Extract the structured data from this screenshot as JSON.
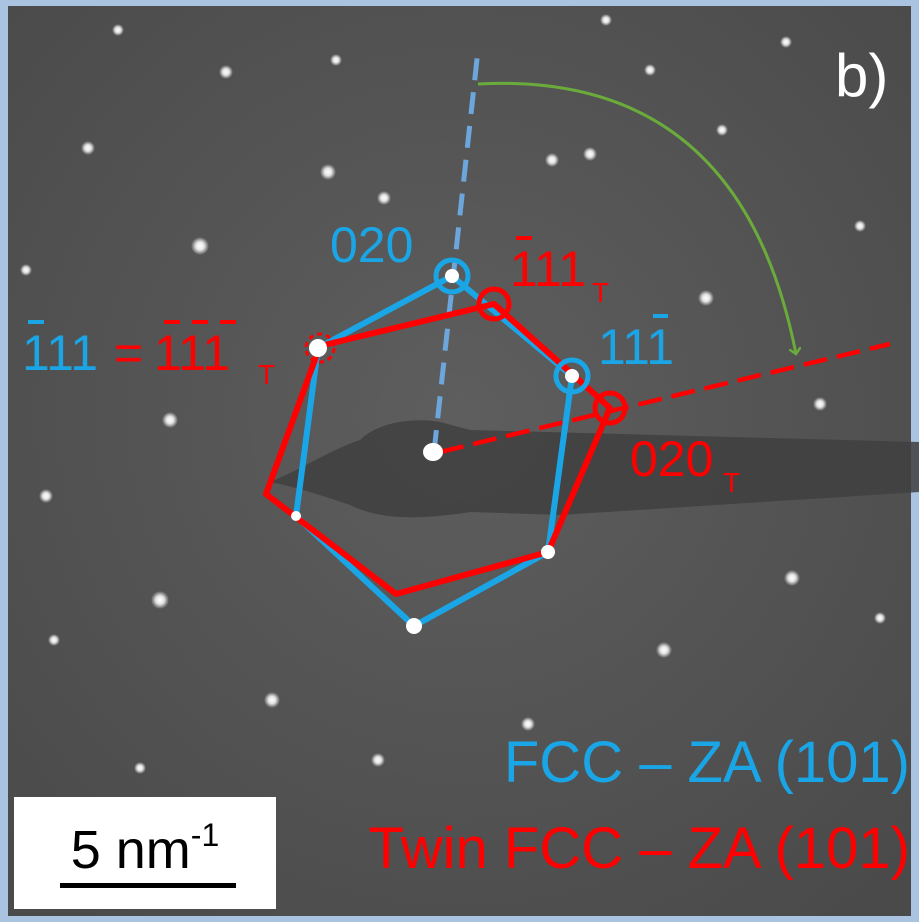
{
  "panel_label": "b)",
  "spot_labels": {
    "fcc_020": "020",
    "fcc_11_1bar": {
      "main": "11",
      "bar_digit": "1"
    },
    "fcc_1bar11_a": {
      "bar_digit": "1",
      "rest": "11",
      "equals": "="
    },
    "twin_1bar1bar1_T": {
      "d1": "1",
      "d2": "1",
      "d3": "1",
      "sub": "T"
    },
    "twin_1bar11_T": {
      "bar_digit": "1",
      "rest": "11",
      "sub": "T"
    },
    "twin_020_T": {
      "main": "020",
      "sub": "T"
    }
  },
  "legend": {
    "fcc": "FCC – ZA (101)",
    "twin": "Twin FCC – ZA (101)"
  },
  "scale_bar": {
    "value": "5 nm",
    "exponent": "-1"
  },
  "colors": {
    "fcc": "#1aa6e6",
    "twin": "#ff0000",
    "fcc_axis": "#6ca6dc",
    "arrow": "#6aab3c",
    "background": "#555555",
    "border": "#a9c3e0"
  }
}
